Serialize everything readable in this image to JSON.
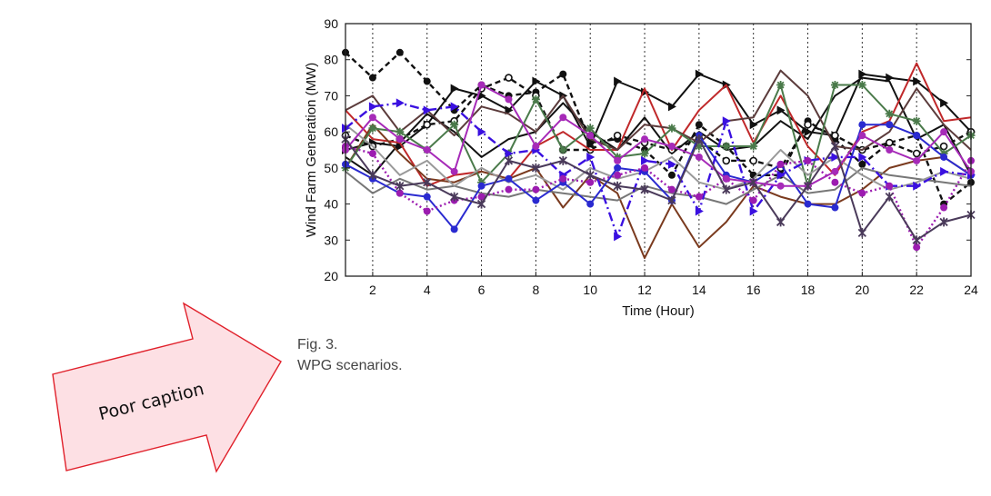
{
  "figure": {
    "caption_number": "Fig. 3.",
    "caption_text": "WPG scenarios."
  },
  "annotation": {
    "text": "Poor caption",
    "fill_color": "#fde0e4",
    "stroke_color": "#e0202a"
  },
  "chart_data": {
    "type": "line",
    "title": "",
    "xlabel": "Time (Hour)",
    "ylabel": "Wind Farm Generation (MW)",
    "xlim": [
      1,
      24
    ],
    "ylim": [
      20,
      90
    ],
    "x_ticks": [
      2,
      4,
      6,
      8,
      10,
      12,
      14,
      16,
      18,
      20,
      22,
      24
    ],
    "y_ticks": [
      20,
      30,
      40,
      50,
      60,
      70,
      80,
      90
    ],
    "grid": "vertical-dotted",
    "legend": "none",
    "x": [
      1,
      2,
      3,
      4,
      5,
      6,
      7,
      8,
      9,
      10,
      11,
      12,
      13,
      14,
      15,
      16,
      17,
      18,
      19,
      20,
      21,
      22,
      23,
      24
    ],
    "series": [
      {
        "color": "#111111",
        "dash": "6,4",
        "marker": "dot",
        "values": [
          82,
          75,
          82,
          74,
          66,
          73,
          70,
          71,
          76,
          57,
          58,
          55,
          48,
          62,
          56,
          48,
          48,
          63,
          58,
          51,
          57,
          59,
          40,
          46
        ]
      },
      {
        "color": "#111111",
        "dash": "",
        "marker": "triangle",
        "values": [
          55,
          57,
          56,
          62,
          72,
          70,
          66,
          74,
          70,
          56,
          74,
          71,
          67,
          76,
          73,
          62,
          66,
          60,
          59,
          76,
          75,
          74,
          68,
          60
        ]
      },
      {
        "color": "#111111",
        "dash": "",
        "marker": "none",
        "values": [
          53,
          48,
          57,
          65,
          60,
          53,
          58,
          60,
          68,
          60,
          55,
          64,
          54,
          60,
          55,
          56,
          63,
          58,
          70,
          75,
          74,
          58,
          62,
          48
        ]
      },
      {
        "color": "#111111",
        "dash": "6,4",
        "marker": "circle",
        "values": [
          59,
          56,
          58,
          62,
          63,
          72,
          75,
          70,
          55,
          55,
          59,
          57,
          55,
          58,
          52,
          52,
          50,
          62,
          59,
          55,
          57,
          54,
          56,
          60
        ]
      },
      {
        "color": "#c0282a",
        "dash": "",
        "marker": "none",
        "values": [
          66,
          58,
          57,
          45,
          48,
          49,
          47,
          56,
          60,
          55,
          55,
          72,
          55,
          66,
          73,
          57,
          70,
          56,
          48,
          60,
          63,
          79,
          63,
          64
        ]
      },
      {
        "color": "#7a3a1e",
        "dash": "",
        "marker": "none",
        "values": [
          50,
          62,
          54,
          47,
          46,
          49,
          47,
          50,
          39,
          48,
          43,
          25,
          40,
          28,
          35,
          45,
          42,
          40,
          40,
          44,
          50,
          52,
          53,
          48
        ]
      },
      {
        "color": "#5b3b3b",
        "dash": "",
        "marker": "none",
        "values": [
          66,
          70,
          60,
          66,
          59,
          67,
          65,
          60,
          70,
          58,
          55,
          62,
          61,
          57,
          63,
          64,
          77,
          70,
          56,
          55,
          60,
          72,
          62,
          55
        ]
      },
      {
        "color": "#4a7a4a",
        "dash": "",
        "marker": "star",
        "values": [
          50,
          61,
          60,
          55,
          62,
          46,
          54,
          69,
          55,
          61,
          53,
          54,
          61,
          56,
          56,
          56,
          73,
          45,
          73,
          73,
          65,
          63,
          54,
          59
        ]
      },
      {
        "color": "#777777",
        "dash": "",
        "marker": "none",
        "values": [
          49,
          43,
          47,
          44,
          45,
          43,
          42,
          44,
          43,
          42,
          41,
          45,
          43,
          42,
          40,
          44,
          48,
          43,
          44,
          50,
          48,
          47,
          46,
          45
        ]
      },
      {
        "color": "#999999",
        "dash": "",
        "marker": "none",
        "values": [
          62,
          56,
          48,
          52,
          45,
          50,
          46,
          48,
          44,
          50,
          47,
          49,
          53,
          46,
          44,
          47,
          55,
          48,
          53,
          48,
          44,
          46,
          49,
          47
        ]
      },
      {
        "color": "#2a2ad0",
        "dash": "",
        "marker": "dot",
        "values": [
          51,
          47,
          43,
          42,
          33,
          45,
          47,
          41,
          46,
          40,
          50,
          49,
          41,
          59,
          48,
          46,
          51,
          40,
          39,
          62,
          62,
          59,
          53,
          48
        ]
      },
      {
        "color": "#3a10e0",
        "dash": "10,4,2,4",
        "marker": "triangle",
        "values": [
          61,
          67,
          68,
          66,
          67,
          60,
          54,
          55,
          48,
          53,
          31,
          52,
          51,
          38,
          63,
          38,
          48,
          52,
          53,
          53,
          45,
          45,
          49,
          48
        ]
      },
      {
        "color": "#9c1cb0",
        "dash": "2,3",
        "marker": "dot",
        "values": [
          56,
          54,
          43,
          38,
          41,
          42,
          44,
          44,
          47,
          46,
          48,
          50,
          44,
          42,
          47,
          41,
          51,
          52,
          46,
          43,
          45,
          28,
          39,
          52
        ]
      },
      {
        "color": "#a62ab8",
        "dash": "",
        "marker": "dot",
        "values": [
          55,
          64,
          58,
          55,
          49,
          73,
          69,
          56,
          64,
          59,
          52,
          58,
          56,
          53,
          47,
          46,
          45,
          45,
          49,
          59,
          55,
          52,
          60,
          49
        ]
      },
      {
        "color": "#4a3a5a",
        "dash": "",
        "marker": "x",
        "values": [
          58,
          48,
          45,
          46,
          42,
          40,
          52,
          50,
          52,
          48,
          45,
          44,
          41,
          58,
          44,
          46,
          35,
          45,
          56,
          32,
          42,
          30,
          35,
          37
        ]
      }
    ]
  }
}
